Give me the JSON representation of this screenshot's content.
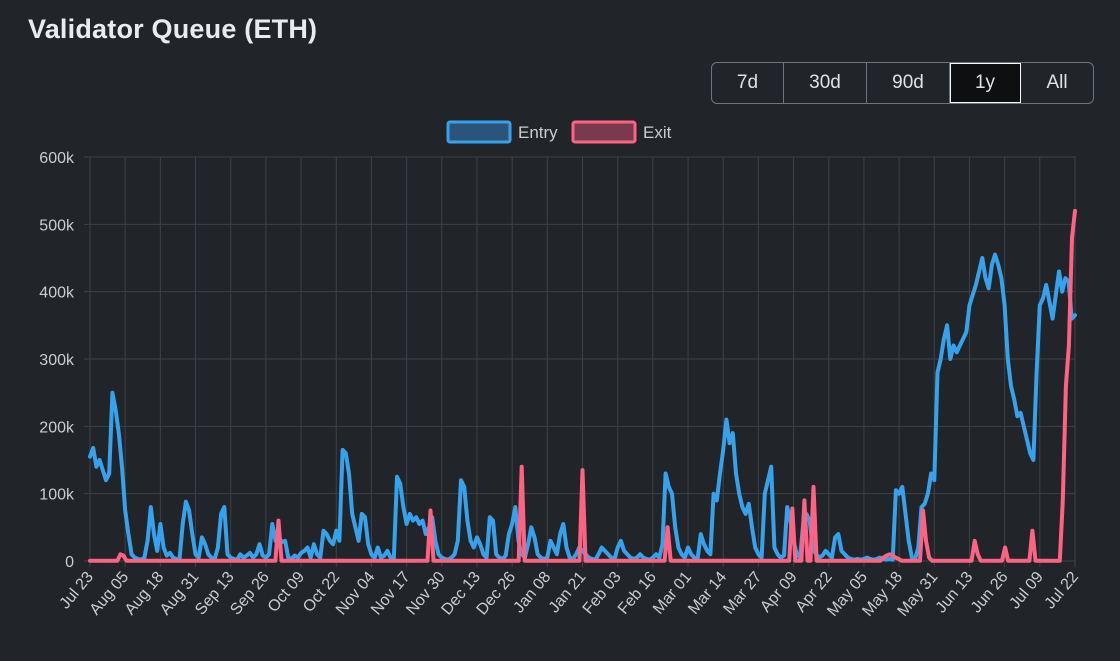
{
  "title": "Validator Queue (ETH)",
  "ranges": [
    {
      "label": "7d",
      "active": false
    },
    {
      "label": "30d",
      "active": false
    },
    {
      "label": "90d",
      "active": false
    },
    {
      "label": "1y",
      "active": true
    },
    {
      "label": "All",
      "active": false
    }
  ],
  "colors": {
    "entry": "#36a2eb",
    "exit": "#ff6384",
    "grid": "#3d4247",
    "background": "#212529"
  },
  "chart_data": {
    "type": "line",
    "title": "",
    "legend": "top-center",
    "grid": true,
    "ylim": [
      0,
      600000
    ],
    "y_ticks": [
      0,
      100000,
      200000,
      300000,
      400000,
      500000,
      600000
    ],
    "y_tick_labels": [
      "0",
      "100k",
      "200k",
      "300k",
      "400k",
      "500k",
      "600k"
    ],
    "x_tick_labels": [
      "Jul 23",
      "Aug 05",
      "Aug 18",
      "Aug 31",
      "Sep 13",
      "Sep 26",
      "Oct 09",
      "Oct 22",
      "Nov 04",
      "Nov 17",
      "Nov 30",
      "Dec 13",
      "Dec 26",
      "Jan 08",
      "Jan 21",
      "Feb 03",
      "Feb 16",
      "Mar 01",
      "Mar 14",
      "Mar 27",
      "Apr 09",
      "Apr 22",
      "May 05",
      "May 18",
      "May 31",
      "Jun 13",
      "Jun 26",
      "Jul 09",
      "Jul 22"
    ],
    "series": [
      {
        "name": "Entry",
        "color": "#36a2eb",
        "values": [
          155000,
          168000,
          140000,
          150000,
          135000,
          120000,
          130000,
          250000,
          225000,
          190000,
          140000,
          75000,
          40000,
          10000,
          5000,
          3000,
          2000,
          5000,
          30000,
          80000,
          40000,
          15000,
          55000,
          20000,
          8000,
          12000,
          5000,
          3000,
          2000,
          55000,
          88000,
          75000,
          40000,
          10000,
          5000,
          35000,
          25000,
          10000,
          5000,
          3000,
          20000,
          70000,
          80000,
          10000,
          5000,
          3000,
          2000,
          10000,
          5000,
          8000,
          12000,
          5000,
          10000,
          25000,
          8000,
          5000,
          10000,
          55000,
          30000,
          35000,
          28000,
          30000,
          5000,
          3000,
          8000,
          5000,
          12000,
          15000,
          20000,
          5000,
          25000,
          10000,
          5000,
          45000,
          40000,
          30000,
          25000,
          45000,
          30000,
          165000,
          160000,
          130000,
          70000,
          50000,
          30000,
          70000,
          65000,
          25000,
          10000,
          5000,
          20000,
          5000,
          8000,
          15000,
          5000,
          3000,
          125000,
          115000,
          80000,
          55000,
          70000,
          60000,
          65000,
          55000,
          60000,
          40000,
          50000,
          65000,
          30000,
          10000,
          5000,
          3000,
          2000,
          5000,
          10000,
          30000,
          120000,
          110000,
          60000,
          30000,
          20000,
          35000,
          25000,
          10000,
          5000,
          65000,
          60000,
          10000,
          5000,
          3000,
          8000,
          40000,
          55000,
          80000,
          30000,
          10000,
          5000,
          25000,
          50000,
          35000,
          10000,
          5000,
          3000,
          5000,
          30000,
          20000,
          10000,
          40000,
          55000,
          20000,
          5000,
          3000,
          10000,
          20000,
          15000,
          10000,
          5000,
          3000,
          2000,
          10000,
          20000,
          15000,
          10000,
          5000,
          3000,
          20000,
          30000,
          15000,
          10000,
          5000,
          3000,
          5000,
          10000,
          5000,
          3000,
          2000,
          5000,
          10000,
          5000,
          25000,
          130000,
          110000,
          100000,
          50000,
          20000,
          10000,
          5000,
          20000,
          10000,
          5000,
          3000,
          40000,
          25000,
          15000,
          10000,
          100000,
          90000,
          130000,
          165000,
          210000,
          175000,
          190000,
          130000,
          100000,
          80000,
          70000,
          85000,
          50000,
          20000,
          10000,
          5000,
          100000,
          120000,
          140000,
          20000,
          10000,
          5000,
          8000,
          80000,
          60000,
          30000,
          10000,
          5000,
          55000,
          70000,
          60000,
          20000,
          10000,
          5000,
          8000,
          15000,
          10000,
          5000,
          35000,
          40000,
          15000,
          10000,
          5000,
          3000,
          2000,
          3000,
          2000,
          3000,
          5000,
          3000,
          2000,
          3000,
          5000,
          3000,
          2000,
          3000,
          2000,
          105000,
          100000,
          110000,
          70000,
          30000,
          5000,
          3000,
          20000,
          80000,
          85000,
          100000,
          130000,
          120000,
          280000,
          300000,
          330000,
          350000,
          300000,
          320000,
          310000,
          320000,
          330000,
          340000,
          380000,
          395000,
          410000,
          430000,
          450000,
          420000,
          405000,
          440000,
          455000,
          440000,
          420000,
          380000,
          300000,
          260000,
          240000,
          215000,
          220000,
          200000,
          180000,
          160000,
          150000,
          280000,
          380000,
          390000,
          410000,
          385000,
          360000,
          395000,
          430000,
          400000,
          420000,
          415000,
          360000,
          365000
        ],
        "line_width": 4
      },
      {
        "name": "Exit",
        "color": "#ff6384",
        "values": [
          500,
          500,
          500,
          500,
          500,
          500,
          500,
          500,
          500,
          500,
          10000,
          8000,
          500,
          500,
          500,
          500,
          500,
          500,
          500,
          500,
          500,
          500,
          500,
          500,
          500,
          500,
          500,
          500,
          500,
          500,
          500,
          500,
          500,
          500,
          500,
          500,
          500,
          500,
          500,
          500,
          500,
          500,
          500,
          500,
          500,
          500,
          500,
          500,
          500,
          500,
          500,
          500,
          500,
          500,
          500,
          500,
          500,
          500,
          500,
          500,
          500,
          500,
          60000,
          500,
          500,
          500,
          500,
          500,
          500,
          500,
          500,
          500,
          500,
          500,
          500,
          500,
          500,
          500,
          500,
          500,
          500,
          500,
          500,
          500,
          500,
          500,
          500,
          500,
          500,
          500,
          500,
          500,
          500,
          500,
          500,
          500,
          500,
          500,
          500,
          500,
          500,
          500,
          500,
          500,
          500,
          500,
          500,
          500,
          500,
          500,
          500,
          500,
          75000,
          500,
          500,
          500,
          500,
          500,
          500,
          500,
          500,
          500,
          500,
          500,
          500,
          500,
          500,
          500,
          500,
          500,
          500,
          500,
          500,
          500,
          500,
          500,
          500,
          500,
          500,
          500,
          500,
          500,
          140000,
          500,
          500,
          500,
          500,
          500,
          500,
          500,
          500,
          500,
          500,
          500,
          500,
          500,
          500,
          500,
          500,
          500,
          500,
          500,
          135000,
          500,
          500,
          500,
          500,
          500,
          500,
          500,
          500,
          500,
          500,
          500,
          500,
          500,
          500,
          500,
          500,
          500,
          500,
          500,
          500,
          500,
          500,
          500,
          500,
          500,
          500,
          500,
          50000,
          500,
          500,
          500,
          500,
          500,
          500,
          500,
          500,
          500,
          500,
          500,
          500,
          500,
          500,
          500,
          500,
          500,
          500,
          500,
          500,
          500,
          500,
          500,
          500,
          500,
          500,
          500,
          500,
          500,
          500,
          500,
          500,
          500,
          500,
          500,
          500,
          500,
          500,
          500,
          500,
          78000,
          500,
          500,
          500,
          90000,
          500,
          500,
          110000,
          500,
          500,
          500,
          500,
          500,
          500,
          500,
          500,
          500,
          500,
          500,
          500,
          500,
          500,
          500,
          500,
          500,
          500,
          500,
          500,
          500,
          500,
          5000,
          8000,
          10000,
          8000,
          5000,
          3000,
          500,
          500,
          500,
          500,
          500,
          500,
          500,
          75000,
          30000,
          5000,
          500,
          500,
          500,
          500,
          500,
          500,
          500,
          500,
          500,
          500,
          500,
          500,
          500,
          500,
          30000,
          10000,
          500,
          500,
          500,
          500,
          500,
          500,
          500,
          500,
          20000,
          500,
          500,
          500,
          500,
          500,
          500,
          500,
          500,
          45000,
          500,
          500,
          500,
          500,
          500,
          500,
          500,
          500,
          500,
          90000,
          260000,
          320000,
          480000,
          520000
        ],
        "line_width": 4
      }
    ]
  }
}
